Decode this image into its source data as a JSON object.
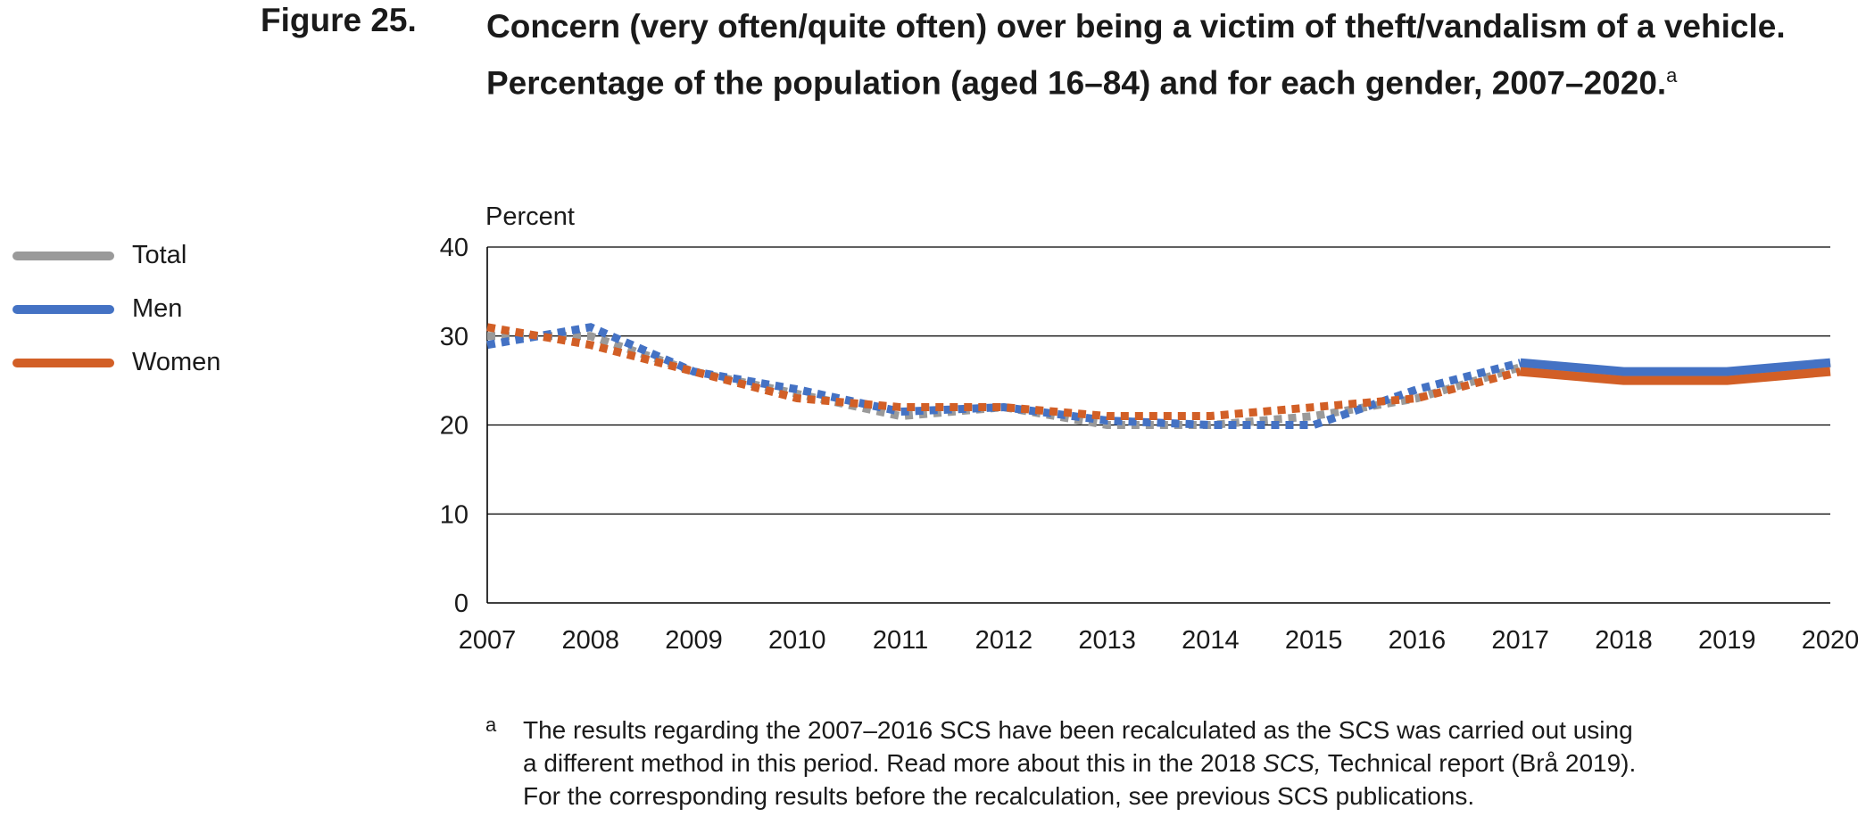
{
  "figure_label": "Figure 25.",
  "title": "Concern (very often/quite often) over being a victim of theft/vandalism of a vehicle. Percentage of the population (aged 16–84) and for each gender, 2007–2020.",
  "title_footnote_mark": "a",
  "legend": [
    {
      "label": "Total",
      "color": "#9a9a9a"
    },
    {
      "label": "Men",
      "color": "#4472c4"
    },
    {
      "label": "Women",
      "color": "#d25f26"
    }
  ],
  "chart_data": {
    "type": "line",
    "ylabel": "Percent",
    "ylim": [
      0,
      40
    ],
    "yticks": [
      0,
      10,
      20,
      30,
      40
    ],
    "x": [
      "2007",
      "2008",
      "2009",
      "2010",
      "2011",
      "2012",
      "2013",
      "2014",
      "2015",
      "2016",
      "2017",
      "2018",
      "2019",
      "2020"
    ],
    "grid": true,
    "legend_position": "left",
    "dashed_until": "2017",
    "series": [
      {
        "name": "Total",
        "color": "#9a9a9a",
        "values": [
          30,
          30,
          26,
          23.5,
          21,
          22,
          20,
          20,
          21,
          23,
          26.5,
          25.5,
          25.5,
          27
        ]
      },
      {
        "name": "Men",
        "color": "#4472c4",
        "values": [
          29,
          31,
          26,
          24,
          21.5,
          22,
          20.5,
          20,
          20,
          24,
          27,
          26,
          26,
          27
        ]
      },
      {
        "name": "Women",
        "color": "#d25f26",
        "values": [
          31,
          29,
          26,
          23,
          22,
          22,
          21,
          21,
          22,
          23,
          26,
          25,
          25,
          26
        ]
      }
    ]
  },
  "footnote": {
    "mark": "a",
    "line1": "The results regarding the 2007–2016 SCS have been recalculated as the SCS was carried out using",
    "line2_pre": "a different method in this period. Read more about this in the 2018 ",
    "line2_em": "SCS,",
    "line2_post": " Technical report (Brå 2019).",
    "line3": "For the corresponding results before the recalculation, see previous SCS publications."
  }
}
